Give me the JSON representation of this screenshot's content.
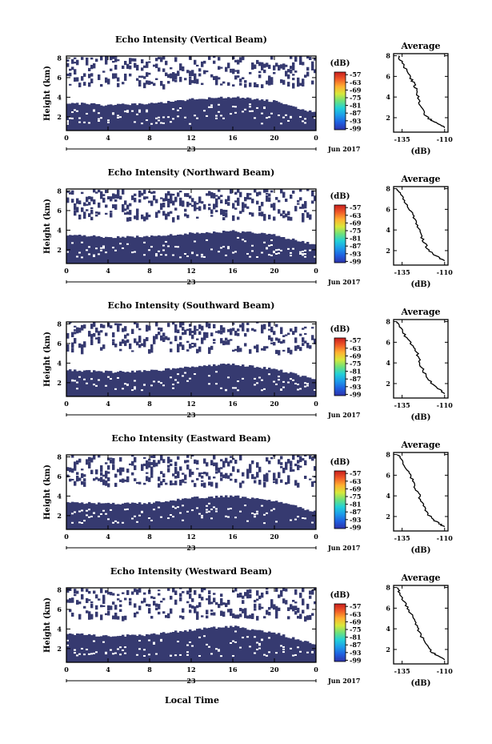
{
  "panel_y_tick_labels": [
    "2",
    "4",
    "6",
    "8"
  ],
  "colors": {
    "echo": "#363a70",
    "colormap": [
      "#2d32a8",
      "#1f5fe0",
      "#1d9bea",
      "#22d0d8",
      "#6ee17a",
      "#d8e83a",
      "#ffb030",
      "#f05a28",
      "#c81e1e"
    ]
  },
  "chart_data": [
    {
      "type": "heatmap",
      "title": "Echo Intensity (Vertical Beam)",
      "ylabel": "Height (km)",
      "x_ticks": [
        "0",
        "4",
        "8",
        "12",
        "16",
        "20",
        "0"
      ],
      "x_range_hours": [
        0,
        24
      ],
      "y_range_km": [
        0.6,
        8.2
      ],
      "date_day": "23",
      "date_month": "Jun 2017",
      "colorbar_unit": "(dB)",
      "colorbar_ticks": [
        "-57",
        "-63",
        "-69",
        "-75",
        "-81",
        "-87",
        "-93",
        "-99"
      ],
      "colorbar_range_db": [
        -100,
        -55
      ],
      "echo_layer_top_km": [
        [
          0,
          3.4
        ],
        [
          4,
          3.2
        ],
        [
          8,
          3.3
        ],
        [
          12,
          3.8
        ],
        [
          16,
          4.0
        ],
        [
          20,
          3.6
        ],
        [
          24,
          2.4
        ]
      ],
      "profile": {
        "title": "Average",
        "xlabel": "(dB)",
        "x_ticks": [
          "-135",
          "-110"
        ],
        "y_ticks": [
          "2",
          "4",
          "6",
          "8"
        ],
        "x_range": [
          -140,
          -108
        ],
        "y_range": [
          0.6,
          8.2
        ],
        "points": [
          [
            -110,
            1.0
          ],
          [
            -112,
            1.3
          ],
          [
            -116,
            1.6
          ],
          [
            -119,
            1.9
          ],
          [
            -122,
            2.4
          ],
          [
            -124,
            3.0
          ],
          [
            -125,
            3.6
          ],
          [
            -126,
            4.2
          ],
          [
            -127,
            4.8
          ],
          [
            -128,
            5.3
          ],
          [
            -130,
            5.8
          ],
          [
            -132,
            6.4
          ],
          [
            -134,
            7.0
          ],
          [
            -136,
            7.6
          ],
          [
            -137,
            8.0
          ]
        ]
      }
    },
    {
      "type": "heatmap",
      "title": "Echo Intensity (Northward Beam)",
      "ylabel": "Height (km)",
      "x_ticks": [
        "0",
        "4",
        "8",
        "12",
        "16",
        "20",
        "0"
      ],
      "x_range_hours": [
        0,
        24
      ],
      "y_range_km": [
        0.6,
        8.2
      ],
      "date_day": "23",
      "date_month": "Jun 2017",
      "colorbar_unit": "(dB)",
      "colorbar_ticks": [
        "-57",
        "-63",
        "-69",
        "-75",
        "-81",
        "-87",
        "-93",
        "-99"
      ],
      "colorbar_range_db": [
        -100,
        -55
      ],
      "echo_layer_top_km": [
        [
          0,
          3.5
        ],
        [
          4,
          3.3
        ],
        [
          8,
          3.4
        ],
        [
          12,
          3.7
        ],
        [
          16,
          3.9
        ],
        [
          20,
          3.5
        ],
        [
          24,
          2.5
        ]
      ],
      "profile": {
        "title": "Average",
        "xlabel": "(dB)",
        "x_ticks": [
          "-135",
          "-110"
        ],
        "y_ticks": [
          "2",
          "4",
          "6",
          "8"
        ],
        "x_range": [
          -140,
          -108
        ],
        "y_range": [
          0.6,
          8.2
        ],
        "points": [
          [
            -110,
            1.0
          ],
          [
            -113,
            1.3
          ],
          [
            -117,
            1.7
          ],
          [
            -120,
            2.2
          ],
          [
            -122,
            2.8
          ],
          [
            -124,
            3.4
          ],
          [
            -125,
            4.0
          ],
          [
            -127,
            4.6
          ],
          [
            -128,
            5.2
          ],
          [
            -130,
            5.8
          ],
          [
            -132,
            6.4
          ],
          [
            -134,
            7.0
          ],
          [
            -136,
            7.6
          ],
          [
            -138,
            8.0
          ]
        ]
      }
    },
    {
      "type": "heatmap",
      "title": "Echo Intensity (Southward Beam)",
      "ylabel": "Height (km)",
      "x_ticks": [
        "0",
        "4",
        "8",
        "12",
        "16",
        "20",
        "0"
      ],
      "x_range_hours": [
        0,
        24
      ],
      "y_range_km": [
        0.6,
        8.2
      ],
      "date_day": "23",
      "date_month": "Jun 2017",
      "colorbar_unit": "(dB)",
      "colorbar_ticks": [
        "-57",
        "-63",
        "-69",
        "-75",
        "-81",
        "-87",
        "-93",
        "-99"
      ],
      "colorbar_range_db": [
        -100,
        -55
      ],
      "echo_layer_top_km": [
        [
          0,
          3.3
        ],
        [
          4,
          3.1
        ],
        [
          8,
          3.2
        ],
        [
          12,
          3.6
        ],
        [
          16,
          3.9
        ],
        [
          20,
          3.4
        ],
        [
          24,
          2.3
        ]
      ],
      "profile": {
        "title": "Average",
        "xlabel": "(dB)",
        "x_ticks": [
          "-135",
          "-110"
        ],
        "y_ticks": [
          "2",
          "4",
          "6",
          "8"
        ],
        "x_range": [
          -140,
          -108
        ],
        "y_range": [
          0.6,
          8.2
        ],
        "points": [
          [
            -110,
            1.0
          ],
          [
            -113,
            1.4
          ],
          [
            -117,
            1.9
          ],
          [
            -120,
            2.5
          ],
          [
            -122,
            3.1
          ],
          [
            -124,
            3.7
          ],
          [
            -125,
            4.3
          ],
          [
            -126,
            4.9
          ],
          [
            -128,
            5.5
          ],
          [
            -130,
            6.0
          ],
          [
            -133,
            6.6
          ],
          [
            -135,
            7.2
          ],
          [
            -137,
            7.8
          ],
          [
            -138,
            8.0
          ]
        ]
      }
    },
    {
      "type": "heatmap",
      "title": "Echo Intensity (Eastward Beam)",
      "ylabel": "Height (km)",
      "x_ticks": [
        "0",
        "4",
        "8",
        "12",
        "16",
        "20",
        "0"
      ],
      "x_range_hours": [
        0,
        24
      ],
      "y_range_km": [
        0.6,
        8.2
      ],
      "date_day": "23",
      "date_month": "Jun 2017",
      "colorbar_unit": "(dB)",
      "colorbar_ticks": [
        "-57",
        "-63",
        "-69",
        "-75",
        "-81",
        "-87",
        "-93",
        "-99"
      ],
      "colorbar_range_db": [
        -100,
        -55
      ],
      "echo_layer_top_km": [
        [
          0,
          3.4
        ],
        [
          4,
          3.2
        ],
        [
          8,
          3.3
        ],
        [
          12,
          3.8
        ],
        [
          16,
          4.0
        ],
        [
          20,
          3.5
        ],
        [
          24,
          2.4
        ]
      ],
      "profile": {
        "title": "Average",
        "xlabel": "(dB)",
        "x_ticks": [
          "-135",
          "-110"
        ],
        "y_ticks": [
          "2",
          "4",
          "6",
          "8"
        ],
        "x_range": [
          -140,
          -108
        ],
        "y_range": [
          0.6,
          8.2
        ],
        "points": [
          [
            -110,
            1.0
          ],
          [
            -113,
            1.3
          ],
          [
            -117,
            1.7
          ],
          [
            -120,
            2.3
          ],
          [
            -122,
            2.9
          ],
          [
            -124,
            3.5
          ],
          [
            -125,
            4.1
          ],
          [
            -127,
            4.7
          ],
          [
            -128,
            5.3
          ],
          [
            -130,
            5.9
          ],
          [
            -132,
            6.5
          ],
          [
            -134,
            7.1
          ],
          [
            -136,
            7.7
          ],
          [
            -138,
            8.0
          ]
        ]
      }
    },
    {
      "type": "heatmap",
      "title": "Echo Intensity (Westward Beam)",
      "ylabel": "Height (km)",
      "x_ticks": [
        "0",
        "4",
        "8",
        "12",
        "16",
        "20",
        "0"
      ],
      "x_range_hours": [
        0,
        24
      ],
      "y_range_km": [
        0.6,
        8.2
      ],
      "date_day": "23",
      "date_month": "Jun 2017",
      "colorbar_unit": "(dB)",
      "colorbar_ticks": [
        "-57",
        "-63",
        "-69",
        "-75",
        "-81",
        "-87",
        "-93",
        "-99"
      ],
      "colorbar_range_db": [
        -100,
        -55
      ],
      "echo_layer_top_km": [
        [
          0,
          3.5
        ],
        [
          4,
          3.3
        ],
        [
          8,
          3.4
        ],
        [
          12,
          3.9
        ],
        [
          16,
          4.3
        ],
        [
          20,
          3.6
        ],
        [
          24,
          2.4
        ]
      ],
      "profile": {
        "title": "Average",
        "xlabel": "(dB)",
        "x_ticks": [
          "-135",
          "-110"
        ],
        "y_ticks": [
          "2",
          "4",
          "6",
          "8"
        ],
        "x_range": [
          -140,
          -108
        ],
        "y_range": [
          0.6,
          8.2
        ],
        "points": [
          [
            -110,
            1.0
          ],
          [
            -113,
            1.3
          ],
          [
            -117,
            1.7
          ],
          [
            -120,
            2.2
          ],
          [
            -122,
            2.8
          ],
          [
            -124,
            3.4
          ],
          [
            -126,
            4.0
          ],
          [
            -127,
            4.6
          ],
          [
            -129,
            5.2
          ],
          [
            -131,
            5.8
          ],
          [
            -133,
            6.4
          ],
          [
            -135,
            7.0
          ],
          [
            -137,
            7.6
          ],
          [
            -138,
            8.0
          ]
        ]
      }
    }
  ],
  "xaxis_label": "Local Time"
}
